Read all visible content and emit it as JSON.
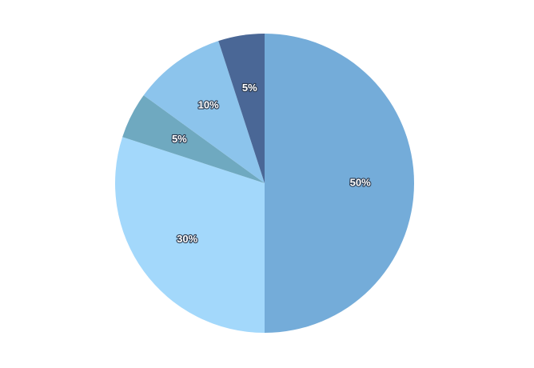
{
  "chart_data": {
    "type": "pie",
    "values": [
      50,
      30,
      5,
      10,
      5
    ],
    "value_labels": [
      "50%",
      "30%",
      "5%",
      "10%",
      "5%"
    ],
    "colors": [
      "#74acd9",
      "#a3d8fb",
      "#6fa9c0",
      "#8cc4ec",
      "#4a6796"
    ]
  }
}
